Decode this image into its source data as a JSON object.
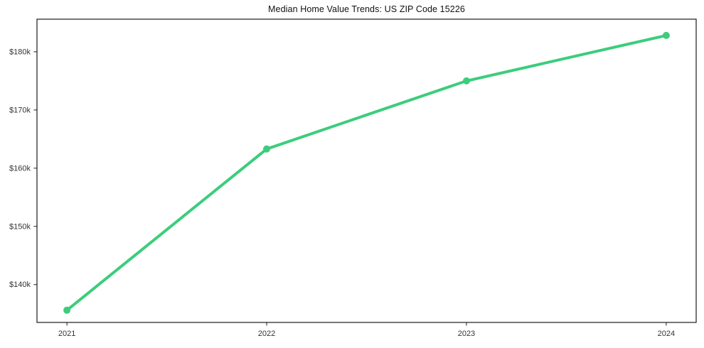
{
  "chart_data": {
    "type": "line",
    "title": "Median Home Value Trends: US ZIP Code 15226",
    "x": [
      2021,
      2022,
      2023,
      2024
    ],
    "xtick_labels": [
      "2021",
      "2022",
      "2023",
      "2024"
    ],
    "series": [
      {
        "name": "median-home-value",
        "values": [
          135600,
          163300,
          175000,
          182800
        ],
        "color": "#3bcd7c",
        "line_width": 4,
        "marker": "circle",
        "marker_radius": 5
      }
    ],
    "xlabel": "",
    "ylabel": "",
    "xlim": [
      2020.85,
      2024.15
    ],
    "ylim": [
      133500,
      185600
    ],
    "yticks": [
      140000,
      150000,
      160000,
      170000,
      180000
    ],
    "ytick_labels": [
      "$140k",
      "$150k",
      "$160k",
      "$170k",
      "$180k"
    ],
    "grid": false,
    "legend": false,
    "frame": "full-box",
    "spine_color": "#1a1a1a",
    "tick_color": "#1a1a1a",
    "tick_label_color": "#333333",
    "background_color": "#ffffff"
  }
}
